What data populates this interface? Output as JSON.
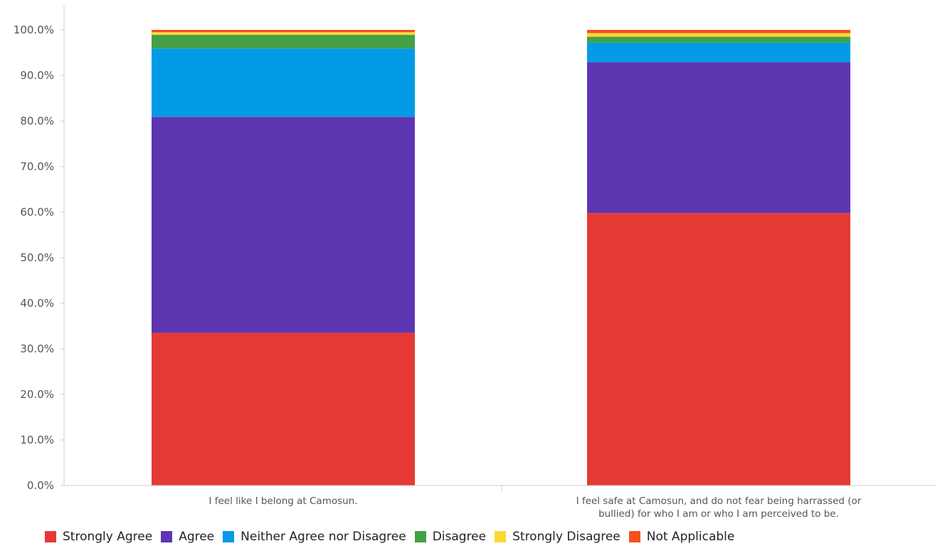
{
  "chart_data": {
    "type": "bar",
    "stacked": true,
    "categories": [
      [
        "I feel like I belong at Camosun."
      ],
      [
        "I feel safe at Camosun, and do not fear being harrassed (or",
        "bullied) for who I am or who I am perceived to be."
      ]
    ],
    "series": [
      {
        "name": "Strongly Agree",
        "color": "#e53935",
        "values": [
          33.5,
          59.8
        ]
      },
      {
        "name": "Agree",
        "color": "#5e35b1",
        "values": [
          47.4,
          33.1
        ]
      },
      {
        "name": "Neither Agree nor Disagree",
        "color": "#039be5",
        "values": [
          15.0,
          4.3
        ]
      },
      {
        "name": "Disagree",
        "color": "#43a047",
        "values": [
          3.0,
          1.3
        ]
      },
      {
        "name": "Strongly Disagree",
        "color": "#fdd835",
        "values": [
          0.6,
          0.8
        ]
      },
      {
        "name": "Not Applicable",
        "color": "#f4511e",
        "values": [
          0.5,
          0.7
        ]
      }
    ],
    "yticks": [
      "0.0%",
      "10.0%",
      "20.0%",
      "30.0%",
      "40.0%",
      "50.0%",
      "60.0%",
      "70.0%",
      "80.0%",
      "90.0%",
      "100.0%"
    ],
    "ylim": [
      0,
      100
    ],
    "grid": false,
    "legend_position": "bottom"
  }
}
